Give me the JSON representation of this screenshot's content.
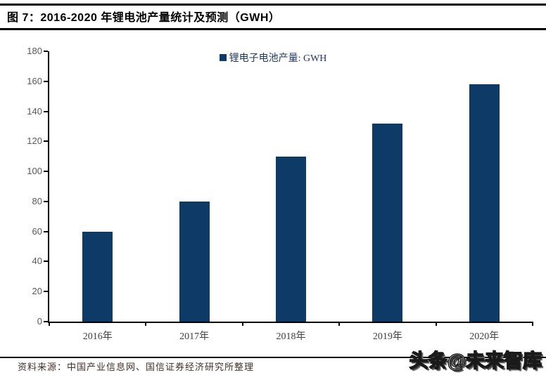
{
  "header": {
    "title": "图 7：2016-2020 年锂电池产量统计及预测（GWH）"
  },
  "chart_data": {
    "type": "bar",
    "title": "2016-2020 年锂电池产量统计及预测（GWH）",
    "legend": "锂电子电池产量: GWH",
    "legend_position": "top-center",
    "categories": [
      "2016年",
      "2017年",
      "2018年",
      "2019年",
      "2020年"
    ],
    "values": [
      60,
      80,
      110,
      132,
      158
    ],
    "ylim": [
      0,
      180
    ],
    "ytick_step": 20,
    "grid": false,
    "bar_color": "#0d3a66",
    "legend_text_color": "#1f3864",
    "axis_color": "#000000",
    "ytick_label_color": "#595959",
    "xtick_label_color": "#404040"
  },
  "footer": {
    "source": "资料来源：中国产业信息网、国信证券经济研究所整理",
    "watermark": "头条@未来智库"
  }
}
